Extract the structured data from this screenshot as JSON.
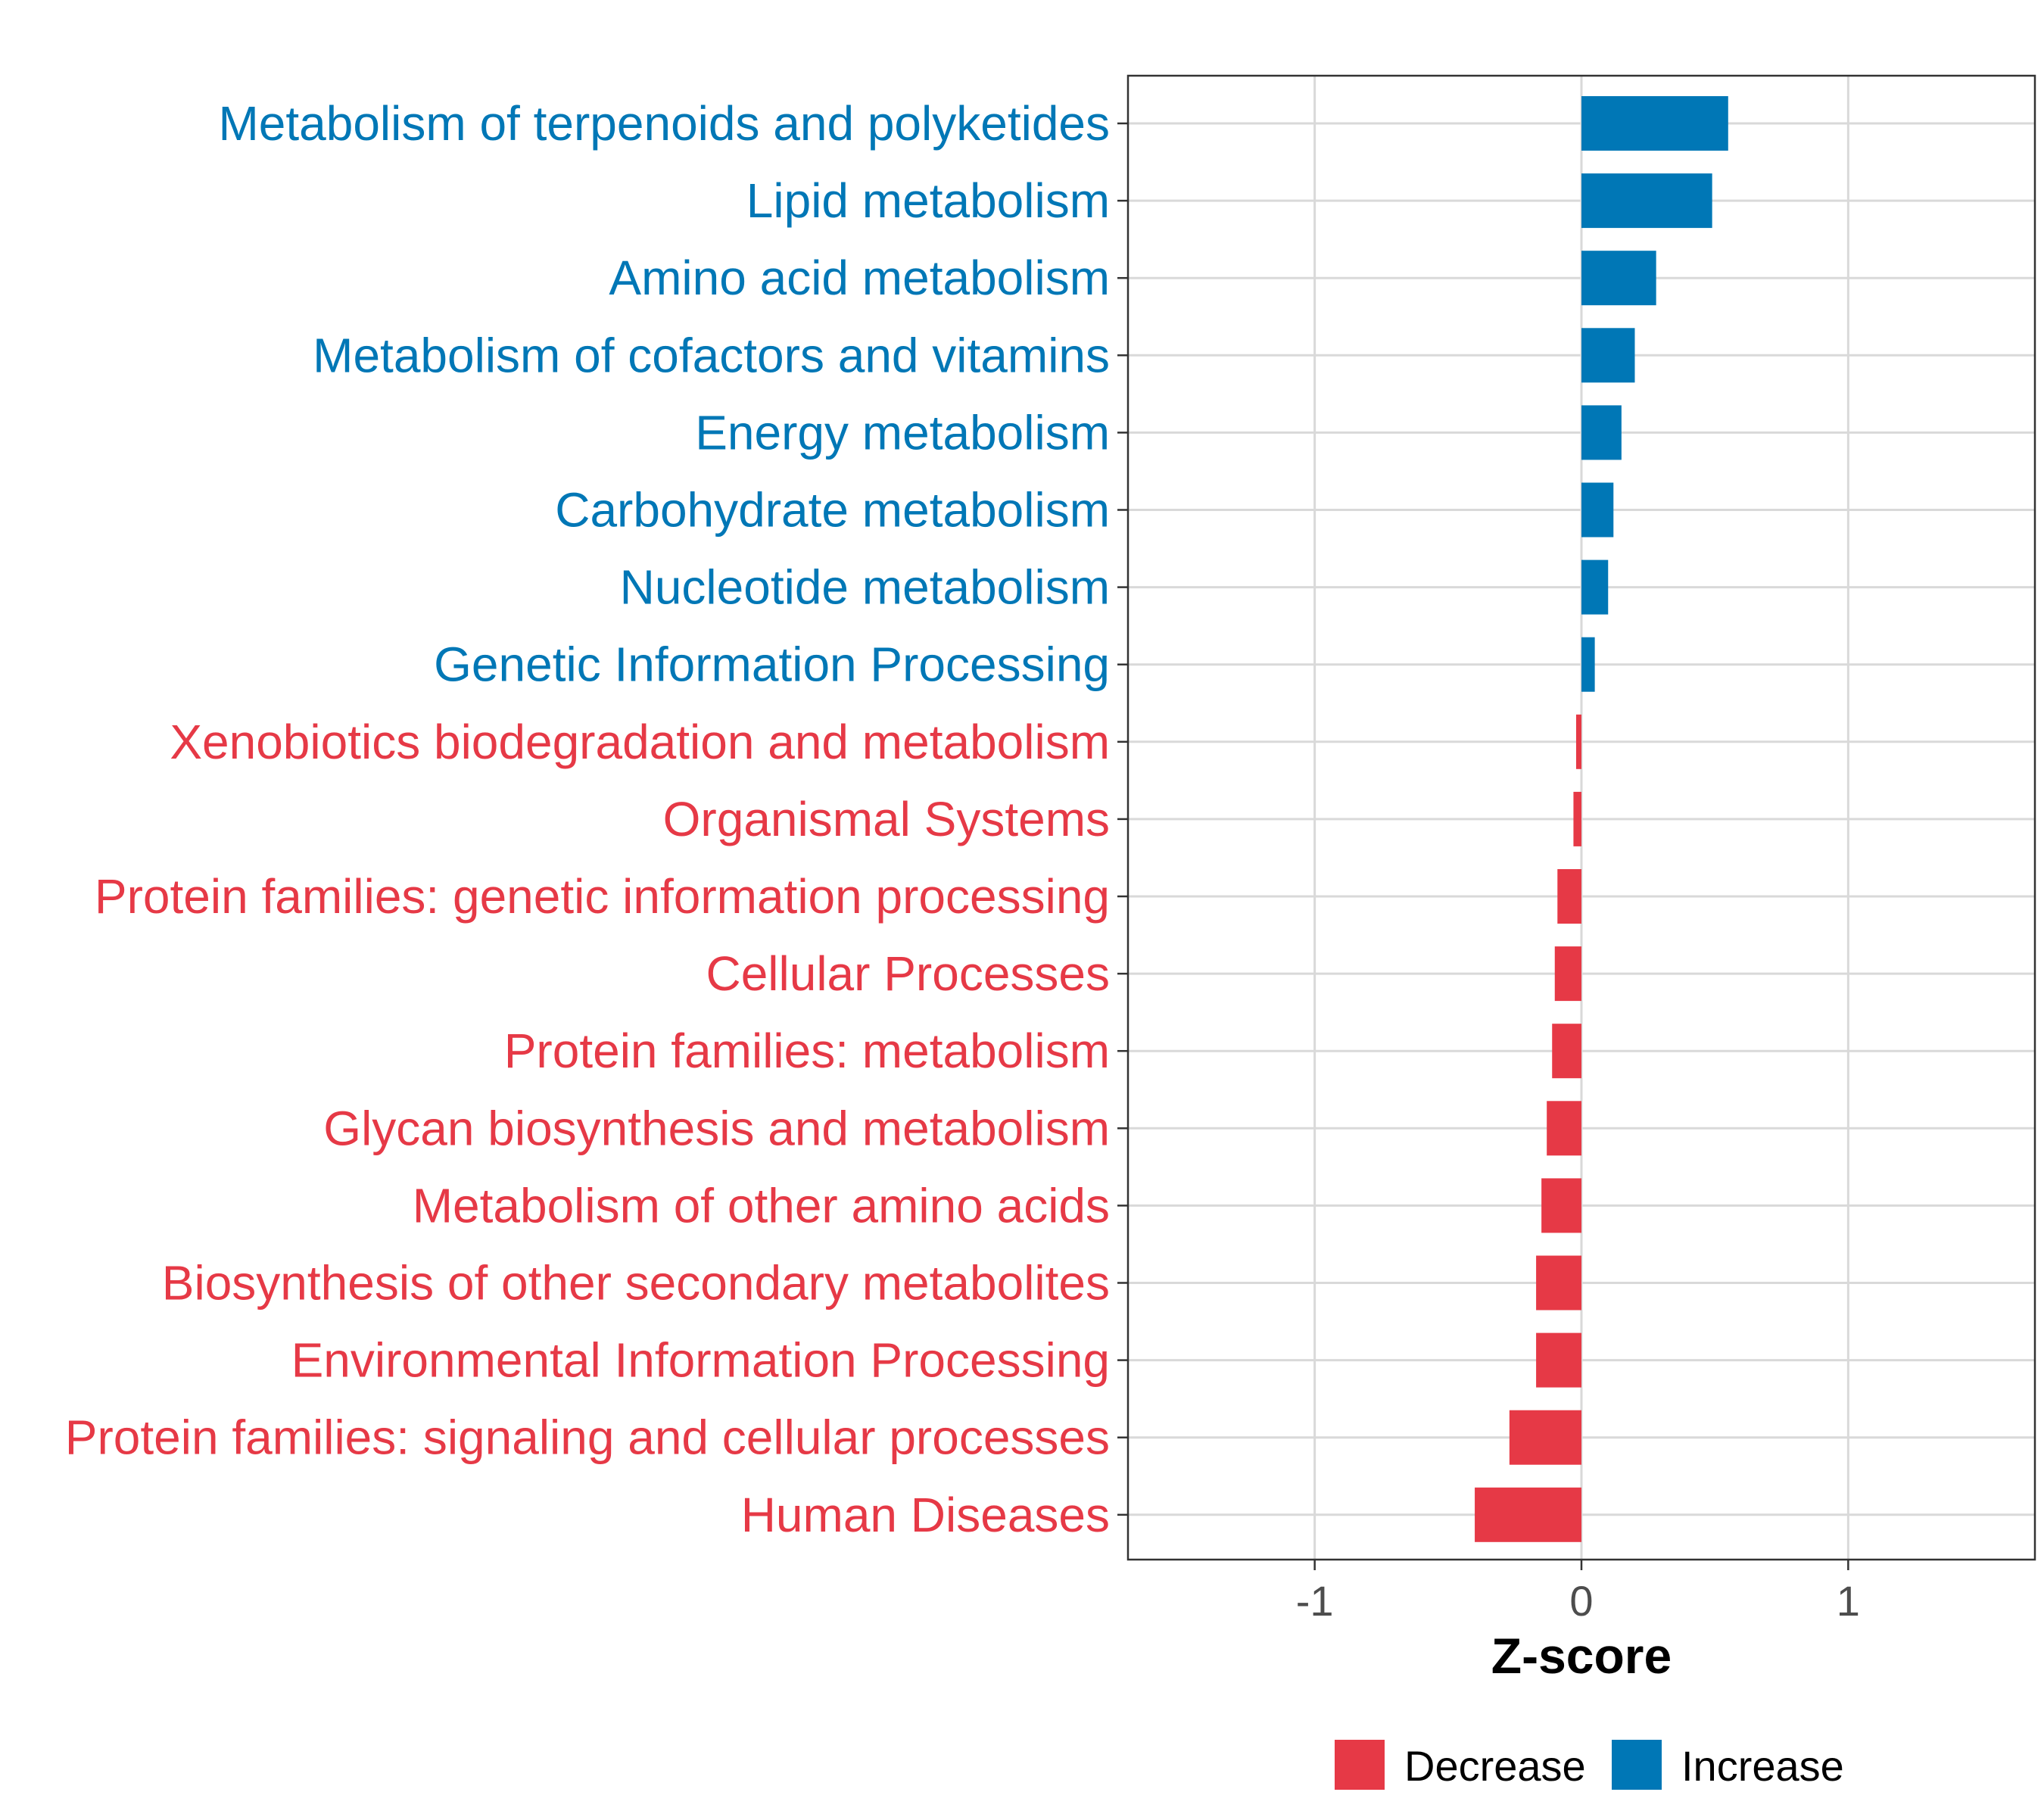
{
  "chart_data": {
    "type": "bar",
    "orientation": "horizontal",
    "xlabel": "Z-score",
    "xlim": [
      -1.7,
      1.7
    ],
    "xticks": [
      -1,
      0,
      1
    ],
    "xtick_labels": [
      "-1",
      "0",
      "1"
    ],
    "grid": true,
    "legend": {
      "position": "bottom",
      "entries": [
        {
          "label": "Decrease",
          "color": "#E63946"
        },
        {
          "label": "Increase",
          "color": "#0077B6"
        }
      ]
    },
    "categories": [
      "Metabolism of terpenoids and polyketides",
      "Lipid metabolism",
      "Amino acid metabolism",
      "Metabolism of cofactors and vitamins",
      "Energy metabolism",
      "Carbohydrate metabolism",
      "Nucleotide metabolism",
      "Genetic Information Processing",
      "Xenobiotics biodegradation and metabolism",
      "Organismal Systems",
      "Protein families: genetic information processing",
      "Cellular Processes",
      "Protein families: metabolism",
      "Glycan biosynthesis and metabolism",
      "Metabolism of other amino acids",
      "Biosynthesis of other secondary metabolites",
      "Environmental Information Processing",
      "Protein families: signaling and cellular processes",
      "Human Diseases"
    ],
    "values": [
      0.55,
      0.49,
      0.28,
      0.2,
      0.15,
      0.12,
      0.1,
      0.05,
      -0.02,
      -0.03,
      -0.09,
      -0.1,
      -0.11,
      -0.13,
      -0.15,
      -0.17,
      -0.17,
      -0.27,
      -0.4
    ],
    "colors": {
      "Decrease": "#E63946",
      "Increase": "#0077B6"
    }
  }
}
